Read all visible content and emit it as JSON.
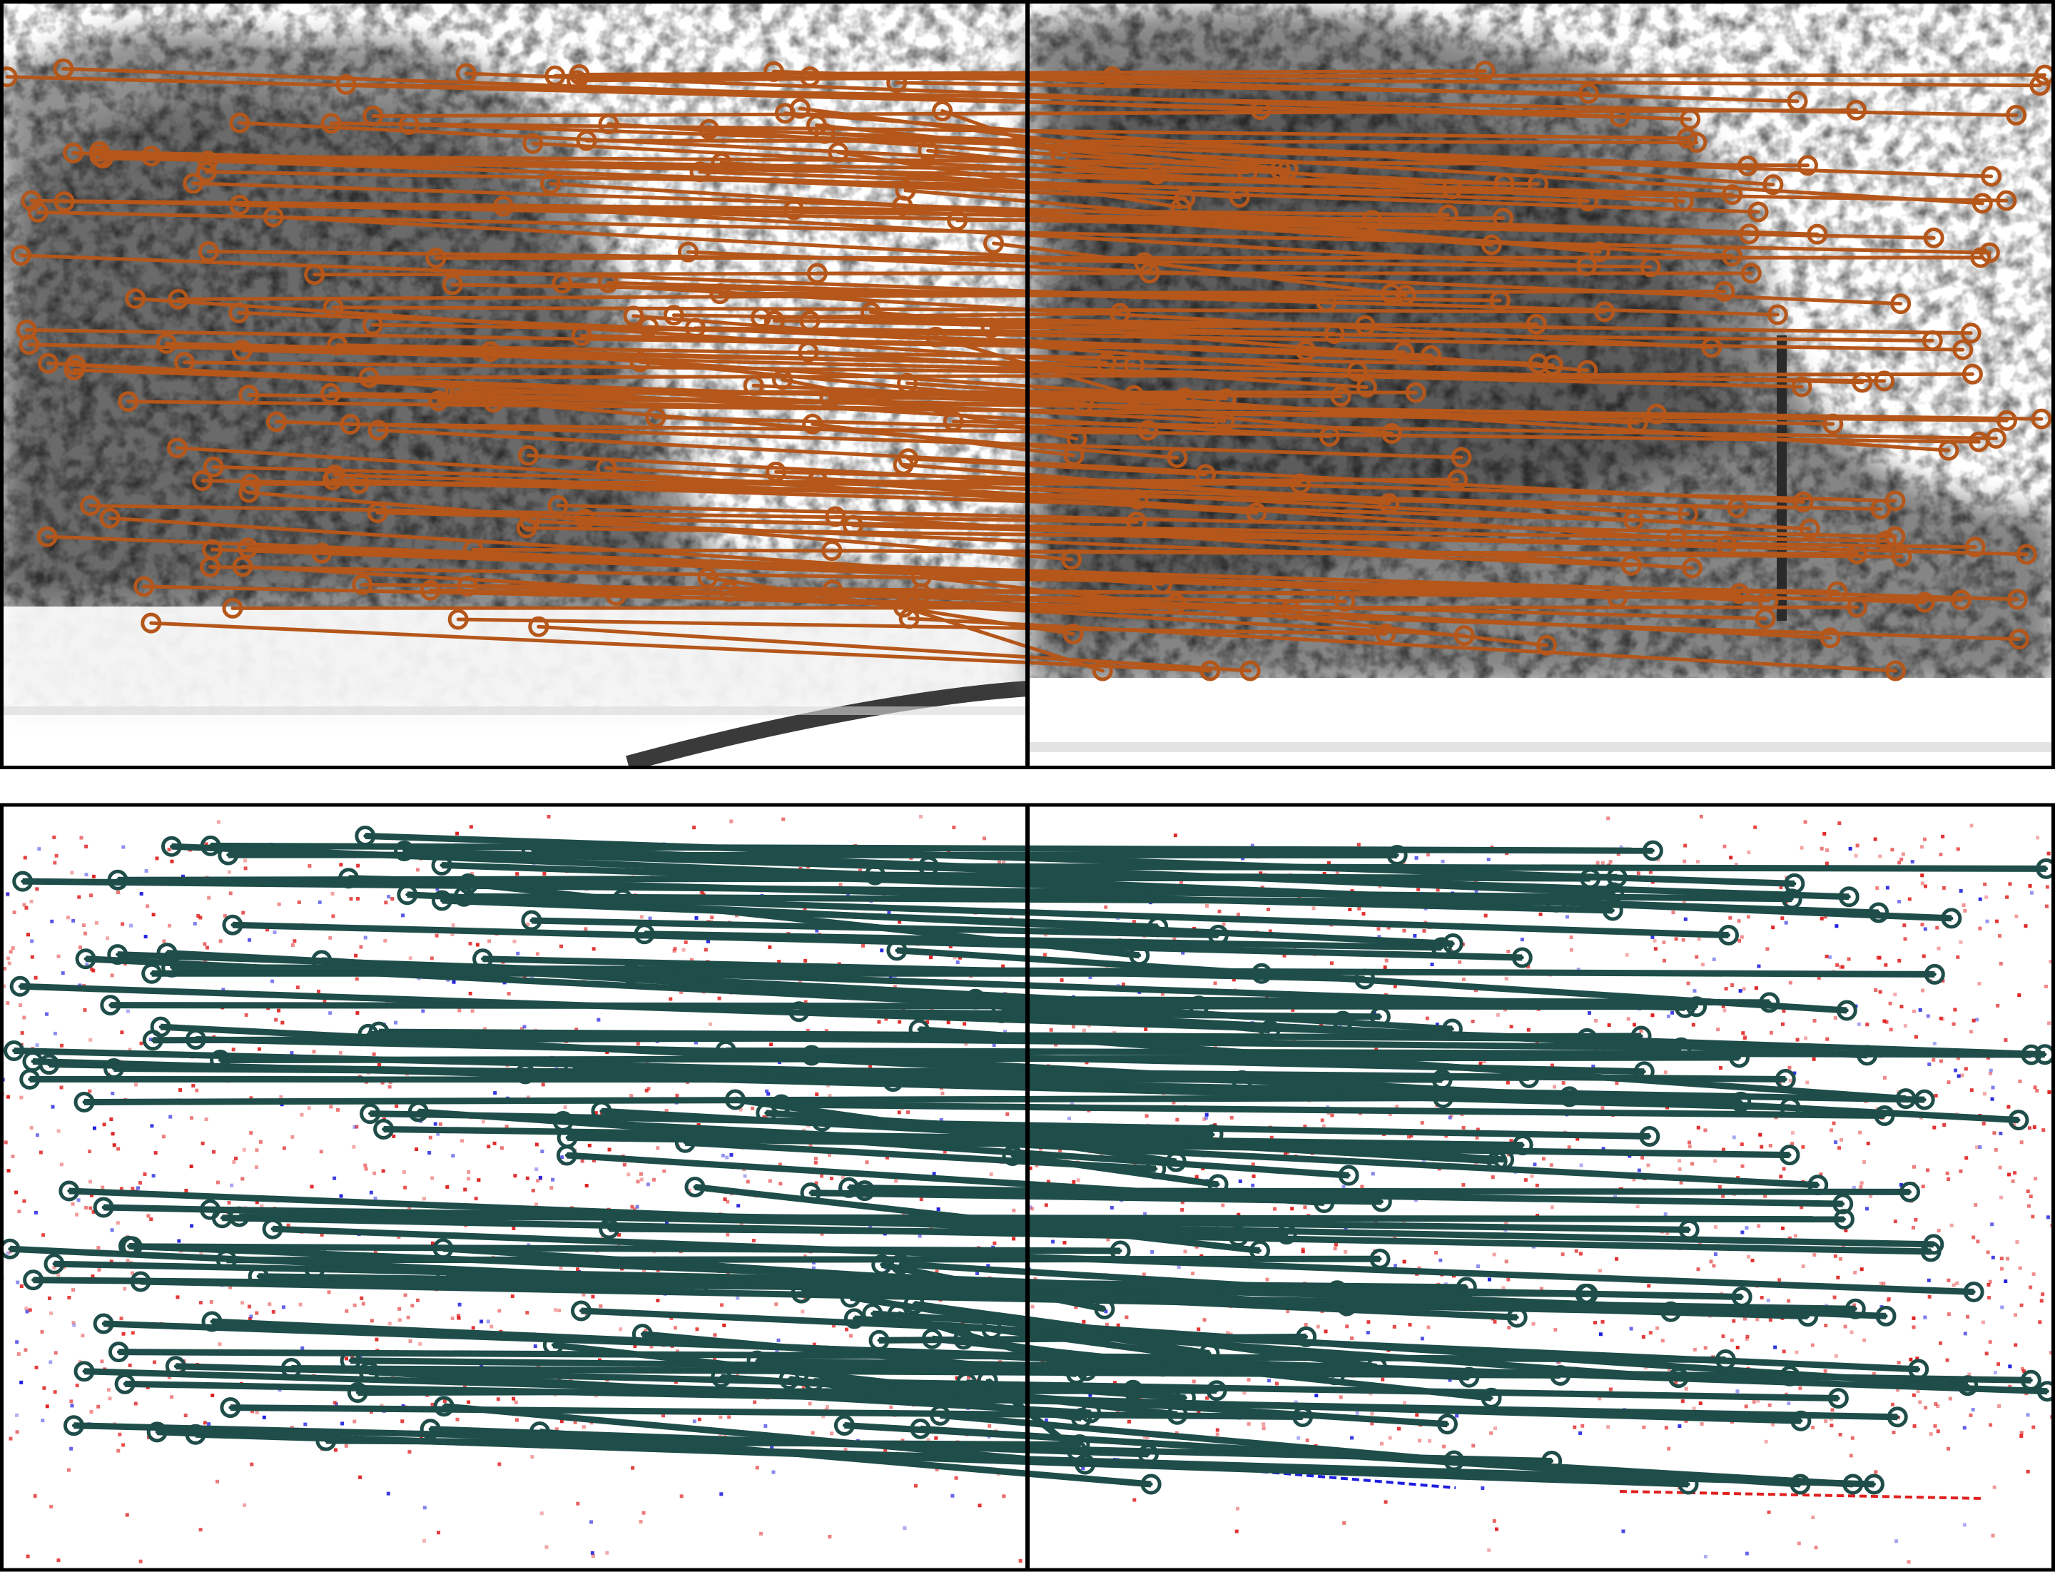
{
  "figure": {
    "description_free": true,
    "panels": [
      {
        "id": "grayscale-matches",
        "kind": "grayscale image pair with feature matches",
        "match_color": "#b5561a",
        "marker_shape": "circle-with-dot"
      },
      {
        "id": "event-matches",
        "kind": "event image pair with feature matches",
        "match_color": "#1f4d49",
        "marker_shape": "circle-with-dot",
        "event_colors": {
          "positive": "#e0201f",
          "negative": "#1d1de0"
        }
      }
    ]
  }
}
